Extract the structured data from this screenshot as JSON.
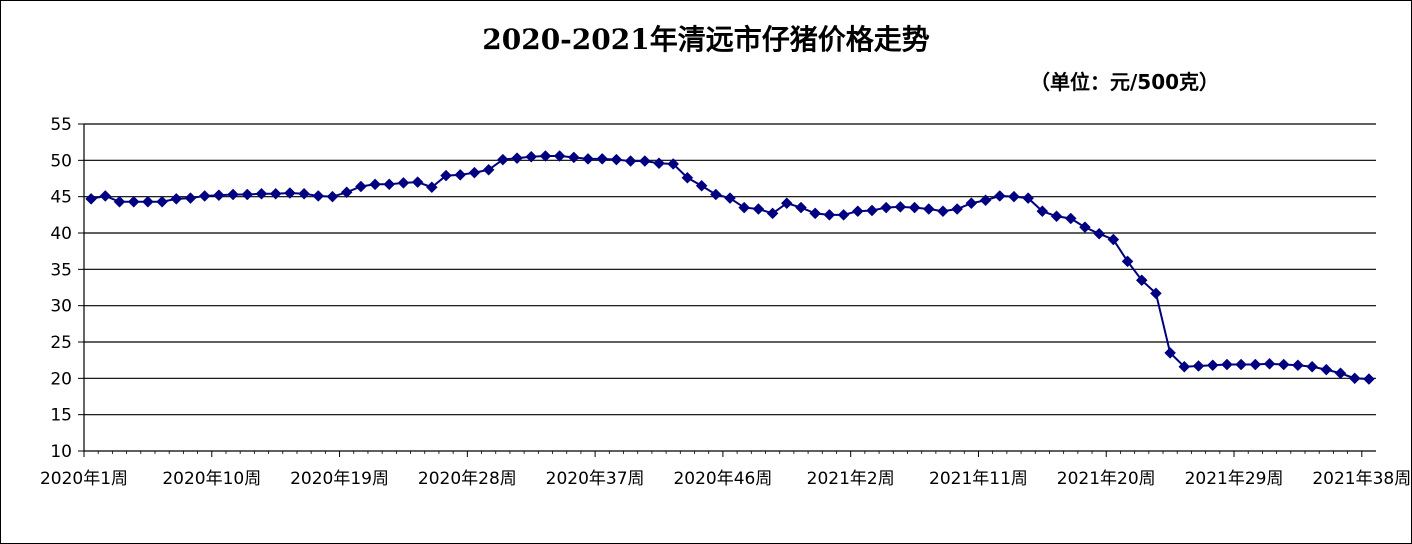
{
  "chart_data": {
    "type": "line",
    "title": "2020-2021年清远市仔猪价格走势",
    "unit_note": "（单位：元/500克）",
    "xlabel": "",
    "ylabel": "",
    "ylim": [
      10,
      55
    ],
    "yticks": [
      10,
      15,
      20,
      25,
      30,
      35,
      40,
      45,
      50,
      55
    ],
    "grid": true,
    "legend": "none",
    "line_color": "#000080",
    "marker": "diamond",
    "x_tick_labels": [
      "2020年1周",
      "2020年10周",
      "2020年19周",
      "2020年28周",
      "2020年37周",
      "2020年46周",
      "2021年2周",
      "2021年11周",
      "2021年20周",
      "2021年29周",
      "2021年38周"
    ],
    "series": [
      {
        "values": [
          44.7,
          45.1,
          44.3,
          44.3,
          44.3,
          44.3,
          44.7,
          44.8,
          45.1,
          45.2,
          45.3,
          45.3,
          45.4,
          45.4,
          45.5,
          45.4,
          45.1,
          45.0,
          45.6,
          46.4,
          46.7,
          46.7,
          46.9,
          47.0,
          46.3,
          47.9,
          48.0,
          48.3,
          48.7,
          50.1,
          50.3,
          50.5,
          50.6,
          50.6,
          50.4,
          50.2,
          50.2,
          50.1,
          49.9,
          49.9,
          49.6,
          49.5,
          47.6,
          46.5,
          45.3,
          44.8,
          43.5,
          43.3,
          42.7,
          44.1,
          43.5,
          42.7,
          42.5,
          42.5,
          43.0,
          43.1,
          43.5,
          43.6,
          43.5,
          43.3,
          43.0,
          43.3,
          44.1,
          44.5,
          45.1,
          45.0,
          44.8,
          43.0,
          42.3,
          42.0,
          40.8,
          39.9,
          39.1,
          36.1,
          33.5,
          31.7,
          23.5,
          21.6,
          21.7,
          21.8,
          21.9,
          21.9,
          21.9,
          22.0,
          21.9,
          21.8,
          21.6,
          21.2,
          20.7,
          20.0,
          19.9
        ]
      }
    ]
  }
}
